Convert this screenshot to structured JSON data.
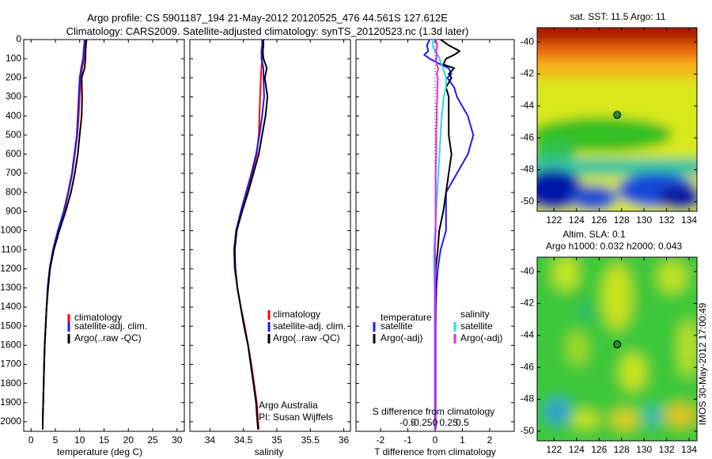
{
  "header": {
    "title_line1": "Argo profile: CS 5901187_194 21-May-2012 20120525_476 44.561S 127.612E",
    "title_line2": "Climatology: CARS2009. Satellite-adjusted climatology: synTS_20120523.nc (1.3d later)"
  },
  "side_label": "IMOS 30-May-2012 17:00:49",
  "colors": {
    "climatology": "#ff0000",
    "satellite": "#1a1aff",
    "argo": "#000000",
    "cyan": "#22dddd",
    "magenta": "#ee22ee"
  },
  "depth_axis": {
    "range": [
      0,
      2050
    ],
    "ticks": [
      0,
      100,
      200,
      300,
      400,
      500,
      600,
      700,
      800,
      900,
      1000,
      1100,
      1200,
      1300,
      1400,
      1500,
      1600,
      1700,
      1800,
      1900,
      2000
    ],
    "tick_labels": [
      "0",
      "100",
      "200",
      "300",
      "400",
      "500",
      "600",
      "700",
      "800",
      "900",
      "1000",
      "1100",
      "1200",
      "1300",
      "1400",
      "1500",
      "1600",
      "1700",
      "1800",
      "1900",
      "2000"
    ]
  },
  "chart_data": [
    {
      "type": "line",
      "id": "temperature",
      "xlabel": "temperature (deg C)",
      "xlim": [
        -1.5,
        31.5
      ],
      "xticks": [
        0,
        5,
        10,
        15,
        20,
        25,
        30
      ],
      "xtick_labels": [
        "0",
        "5",
        "10",
        "15",
        "20",
        "25",
        "30"
      ],
      "ylabel": "depth",
      "legend": [
        "climatology",
        "satellite-adj. clim.",
        "Argo(..raw -QC)"
      ],
      "depth": [
        0,
        30,
        60,
        100,
        150,
        200,
        300,
        400,
        500,
        600,
        700,
        800,
        900,
        1000,
        1100,
        1200,
        1300,
        1400,
        1500,
        1600,
        1700,
        1800,
        1900,
        2000,
        2040
      ],
      "series": [
        {
          "name": "climatology",
          "color": "climatology",
          "values": [
            11.2,
            11.1,
            11.0,
            10.9,
            10.5,
            10.2,
            10.0,
            9.8,
            9.5,
            9.0,
            8.5,
            7.7,
            6.8,
            5.6,
            4.6,
            3.9,
            3.5,
            3.2,
            3.0,
            2.8,
            2.7,
            2.6,
            2.5,
            2.4,
            2.4
          ]
        },
        {
          "name": "satellite-adj. clim.",
          "color": "satellite",
          "values": [
            11.0,
            10.9,
            10.8,
            10.7,
            10.3,
            10.0,
            9.8,
            9.6,
            9.4,
            8.9,
            8.4,
            7.6,
            6.7,
            5.5,
            4.5,
            3.8,
            3.4,
            3.2,
            3.0,
            2.8,
            2.7,
            2.6,
            2.5,
            2.4,
            2.4
          ]
        },
        {
          "name": "Argo(..raw -QC)",
          "color": "argo",
          "values": [
            11.4,
            11.3,
            11.2,
            11.2,
            11.0,
            10.4,
            10.5,
            10.4,
            10.0,
            9.6,
            9.0,
            8.2,
            7.1,
            5.8,
            4.7,
            3.9,
            3.5,
            3.2,
            3.0,
            2.8,
            2.7,
            2.6,
            2.5,
            2.4,
            2.4
          ]
        }
      ]
    },
    {
      "type": "line",
      "id": "salinity",
      "xlabel": "salinity",
      "xlim": [
        33.7,
        36.1
      ],
      "xticks": [
        34,
        34.5,
        35,
        35.5,
        36
      ],
      "xtick_labels": [
        "34",
        "34.5",
        "35",
        "35.5",
        "36"
      ],
      "ylabel": "depth",
      "legend": [
        "climatology",
        "satellite-adj. clim.",
        "Argo(..raw -QC)"
      ],
      "depth": [
        0,
        30,
        60,
        100,
        150,
        200,
        300,
        400,
        500,
        600,
        700,
        800,
        900,
        1000,
        1100,
        1200,
        1300,
        1400,
        1500,
        1600,
        1700,
        1800,
        1900,
        2000,
        2040
      ],
      "series": [
        {
          "name": "climatology",
          "color": "climatology",
          "values": [
            34.8,
            34.8,
            34.79,
            34.78,
            34.77,
            34.76,
            34.75,
            34.74,
            34.73,
            34.7,
            34.63,
            34.55,
            34.47,
            34.4,
            34.37,
            34.38,
            34.41,
            34.46,
            34.52,
            34.57,
            34.62,
            34.66,
            34.7,
            34.72,
            34.73
          ]
        },
        {
          "name": "satellite-adj. clim.",
          "color": "satellite",
          "values": [
            34.78,
            34.78,
            34.77,
            34.77,
            34.8,
            34.8,
            34.81,
            34.78,
            34.74,
            34.69,
            34.62,
            34.54,
            34.46,
            34.39,
            34.36,
            34.37,
            34.41,
            34.46,
            34.51,
            34.57,
            34.61,
            34.65,
            34.69,
            34.71,
            34.72
          ]
        },
        {
          "name": "Argo(..raw -QC)",
          "color": "argo",
          "values": [
            34.8,
            34.8,
            34.79,
            34.8,
            34.85,
            34.82,
            34.86,
            34.83,
            34.78,
            34.73,
            34.65,
            34.57,
            34.48,
            34.4,
            34.37,
            34.38,
            34.41,
            34.46,
            34.51,
            34.57,
            34.61,
            34.65,
            34.69,
            34.71,
            34.72
          ]
        }
      ]
    },
    {
      "type": "line",
      "id": "differences",
      "xlabel": "T difference from climatology",
      "xlabel_top": "S difference from climatology",
      "xlim": [
        -2.9,
        2.9
      ],
      "xticks": [
        -2,
        -1,
        0,
        1,
        2
      ],
      "xtick_labels": [
        "-2",
        "-1",
        "0",
        "1",
        "2"
      ],
      "s_xticks": [
        -0.5,
        -0.25,
        0,
        0.25,
        0.5
      ],
      "s_xtick_labels": [
        "-0.5",
        "-0.25",
        "0",
        "0.25",
        "0.5"
      ],
      "s_scale": 2.0,
      "legend_temperature_title": "temperature",
      "legend_salinity_title": "salinity",
      "legend": [
        "satellite",
        "Argo(-adj)",
        "satellite",
        "Argo(-adj)"
      ],
      "depth": [
        0,
        30,
        60,
        80,
        100,
        130,
        150,
        180,
        200,
        250,
        300,
        350,
        400,
        500,
        600,
        700,
        800,
        900,
        1000,
        1100,
        1200,
        1300,
        1400,
        1500,
        1600,
        1700,
        1800,
        1900,
        2000,
        2040
      ],
      "series": [
        {
          "name": "T satellite",
          "color": "satellite",
          "values": [
            -0.2,
            -0.3,
            -0.25,
            -0.4,
            -0.2,
            0.2,
            0.5,
            0.6,
            0.45,
            0.7,
            0.8,
            1.0,
            1.2,
            1.4,
            1.2,
            0.8,
            0.4,
            0.4,
            0.4,
            0.2,
            0.1,
            0.05,
            0.03,
            0.02,
            0.02,
            0.02,
            0.02,
            0.02,
            0.02,
            0.02
          ]
        },
        {
          "name": "T Argo(-adj)",
          "color": "argo",
          "values": [
            0.2,
            0.5,
            0.9,
            0.7,
            0.4,
            0.3,
            0.7,
            0.5,
            0.6,
            0.4,
            0.5,
            0.5,
            0.5,
            0.5,
            0.6,
            0.5,
            0.4,
            0.3,
            0.15,
            0.1,
            0.02,
            0.01,
            0.0,
            0.0,
            0.0,
            0.0,
            0.0,
            0.0,
            0.0,
            0.0
          ]
        },
        {
          "name": "S satellite",
          "color": "cyan",
          "values": [
            -0.03,
            -0.05,
            0.0,
            0.05,
            0.08,
            0.12,
            0.14,
            0.18,
            0.2,
            0.2,
            0.16,
            0.14,
            0.12,
            0.1,
            0.08,
            0.06,
            0.04,
            0.02,
            0.0,
            -0.02,
            -0.02,
            -0.01,
            -0.01,
            -0.01,
            -0.01,
            -0.01,
            -0.01,
            -0.01,
            -0.01,
            -0.01
          ]
        },
        {
          "name": "S Argo(-adj)",
          "color": "magenta",
          "values": [
            0.01,
            0.04,
            0.02,
            0.03,
            0.02,
            0.03,
            0.06,
            0.03,
            0.05,
            0.04,
            0.04,
            0.03,
            0.03,
            0.02,
            0.02,
            0.01,
            0.01,
            0.01,
            0.01,
            0.0,
            0.0,
            0.0,
            0.0,
            0.0,
            0.0,
            0.0,
            0.0,
            0.0,
            0.0,
            0.0
          ]
        }
      ]
    },
    {
      "type": "heatmap",
      "id": "sst_map",
      "title": "sat. SST: 11.5 Argo: 11",
      "xlim": [
        120.5,
        134.7
      ],
      "ylim": [
        -50.6,
        -39.1
      ],
      "xticks": [
        122,
        124,
        126,
        128,
        130,
        132,
        134
      ],
      "xtick_labels": [
        "122",
        "124",
        "126",
        "128",
        "130",
        "132",
        "134"
      ],
      "yticks": [
        -40,
        -42,
        -44,
        -46,
        -48,
        -50
      ],
      "ytick_labels": [
        "-40",
        "-42",
        "-44",
        "-46",
        "-48",
        "-50"
      ],
      "marker": {
        "lon": 127.612,
        "lat": -44.561
      }
    },
    {
      "type": "heatmap",
      "id": "sla_map",
      "title": "Altim. SLA: 0.1",
      "subtitle": "Argo h1000: 0.032 h2000: 0.043",
      "xlim": [
        120.5,
        134.7
      ],
      "ylim": [
        -50.6,
        -39.1
      ],
      "xticks": [
        122,
        124,
        126,
        128,
        130,
        132,
        134
      ],
      "xtick_labels": [
        "122",
        "124",
        "126",
        "128",
        "130",
        "132",
        "134"
      ],
      "yticks": [
        -40,
        -42,
        -44,
        -46,
        -48,
        -50
      ],
      "ytick_labels": [
        "-40",
        "-42",
        "-44",
        "-46",
        "-48",
        "-50"
      ],
      "marker": {
        "lon": 127.612,
        "lat": -44.561
      }
    }
  ],
  "annotation": {
    "line1": "Argo Australia",
    "line2": "PI: Susan Wijffels"
  }
}
